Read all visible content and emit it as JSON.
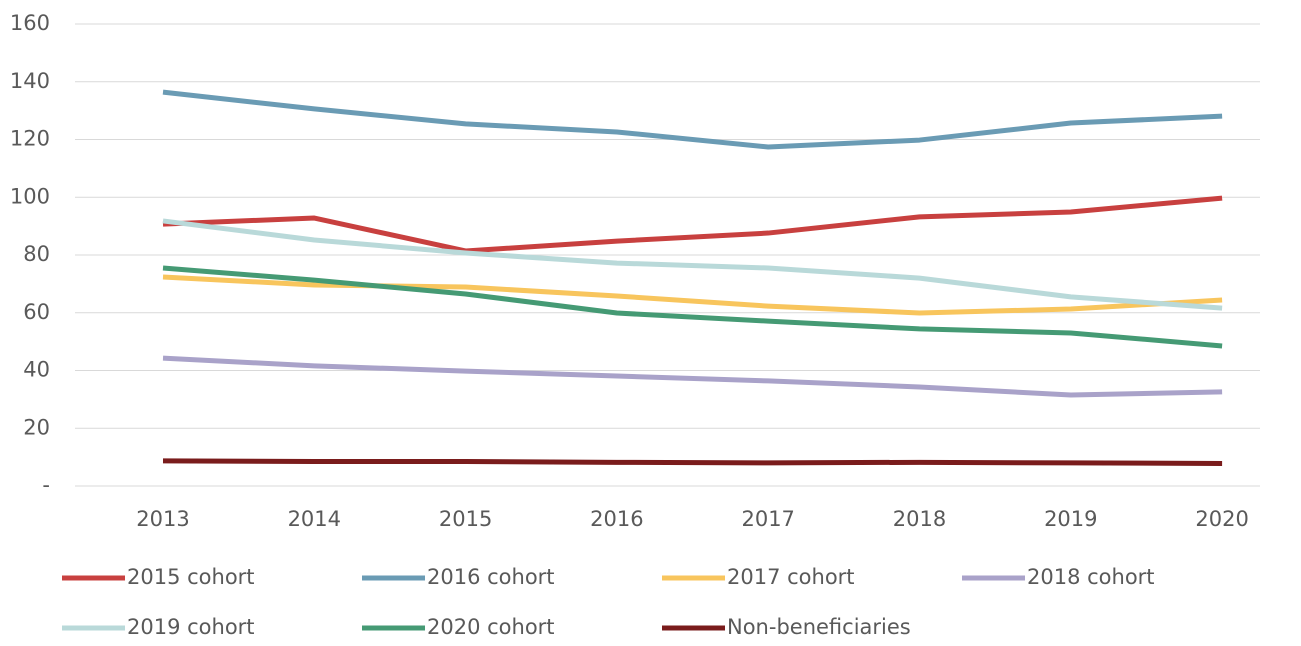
{
  "chart_data": {
    "type": "line",
    "categories": [
      "2013",
      "2014",
      "2015",
      "2016",
      "2017",
      "2018",
      "2019",
      "2020"
    ],
    "series": [
      {
        "name": "2015 cohort",
        "color": "#c8403f",
        "values": [
          90.7,
          92.8,
          81.4,
          84.8,
          87.6,
          93.2,
          94.9,
          99.7
        ]
      },
      {
        "name": "2016 cohort",
        "color": "#6a9bb4",
        "values": [
          136.4,
          130.6,
          125.4,
          122.6,
          117.4,
          119.8,
          125.7,
          128.1
        ]
      },
      {
        "name": "2017 cohort",
        "color": "#f8c55d",
        "values": [
          72.4,
          69.6,
          68.9,
          65.8,
          62.3,
          59.9,
          61.3,
          64.4
        ]
      },
      {
        "name": "2018 cohort",
        "color": "#a9a2c9",
        "values": [
          44.3,
          41.6,
          39.8,
          38.1,
          36.4,
          34.3,
          31.5,
          32.6
        ]
      },
      {
        "name": "2019 cohort",
        "color": "#b9d9d9",
        "values": [
          91.8,
          85.2,
          80.7,
          77.2,
          75.5,
          72.0,
          65.5,
          61.6
        ]
      },
      {
        "name": "2020 cohort",
        "color": "#459a74",
        "values": [
          75.5,
          71.3,
          66.5,
          59.9,
          57.1,
          54.4,
          53.0,
          48.5
        ]
      },
      {
        "name": "Non-beneficiaries",
        "color": "#7a1c1c",
        "values": [
          8.7,
          8.5,
          8.5,
          8.2,
          8.0,
          8.2,
          8.0,
          7.8
        ]
      }
    ],
    "ylim": [
      0,
      160
    ],
    "yticks": [
      {
        "value": 0,
        "label": "-"
      },
      20,
      40,
      60,
      80,
      100,
      120,
      140,
      160
    ],
    "grid": true,
    "legend": "bottom"
  }
}
